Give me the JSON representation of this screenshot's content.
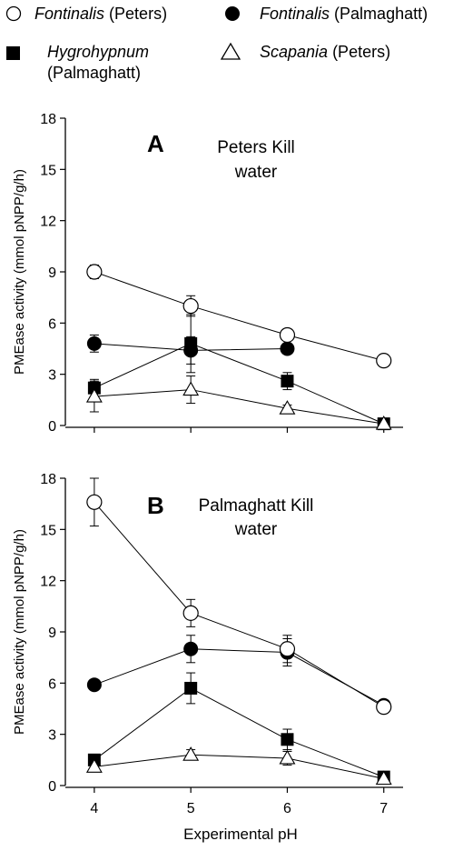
{
  "legend": [
    {
      "marker": "circle-open",
      "name_italic": "Fontinalis",
      "name_rest": " (Peters)"
    },
    {
      "marker": "circle-filled",
      "name_italic": "Fontinalis",
      "name_rest": " (Palmaghatt)"
    },
    {
      "marker": "square-filled",
      "name_italic": "Hygrohypnum",
      "name_rest": "(Palmaghatt)"
    },
    {
      "marker": "triangle-open",
      "name_italic": "Scapania",
      "name_rest": " (Peters)"
    }
  ],
  "xlabel": "Experimental pH",
  "chart_data": [
    {
      "type": "line",
      "panel_letter": "A",
      "title_lines": [
        "Peters Kill",
        "water"
      ],
      "ylabel": "PMEase activity (mmol pNPP/g/h)",
      "x": [
        4,
        5,
        6,
        7
      ],
      "xlim": [
        3.7,
        7.2
      ],
      "ylim": [
        0,
        18
      ],
      "yticks": [
        0,
        3,
        6,
        9,
        12,
        15,
        18
      ],
      "xticks": [
        4,
        5,
        6,
        7
      ],
      "series": [
        {
          "key": "fontinalis_peters",
          "marker": "circle-open",
          "values": [
            9.0,
            7.0,
            5.3,
            3.8
          ],
          "err": [
            0.4,
            0.6,
            0.2,
            0.1
          ]
        },
        {
          "key": "fontinalis_palmaghatt",
          "marker": "circle-filled",
          "values": [
            4.8,
            4.4,
            4.5,
            null
          ],
          "err": [
            0.5,
            0.8,
            0.2,
            null
          ]
        },
        {
          "key": "hygrohypnum_palmaghatt",
          "marker": "square-filled",
          "values": [
            2.2,
            4.8,
            2.6,
            0.1
          ],
          "err": [
            0.5,
            1.7,
            0.5,
            0.1
          ]
        },
        {
          "key": "scapania_peters",
          "marker": "triangle-open",
          "values": [
            1.7,
            2.1,
            1.0,
            0.1
          ],
          "err": [
            0.9,
            0.8,
            0.2,
            0.1
          ]
        }
      ]
    },
    {
      "type": "line",
      "panel_letter": "B",
      "title_lines": [
        "Palmaghatt Kill",
        "water"
      ],
      "ylabel": "PMEase activity (mmol pNPP/g/h)",
      "x": [
        4,
        5,
        6,
        7
      ],
      "xlim": [
        3.7,
        7.2
      ],
      "ylim": [
        0,
        18
      ],
      "yticks": [
        0,
        3,
        6,
        9,
        12,
        15,
        18
      ],
      "xticks": [
        4,
        5,
        6,
        7
      ],
      "series": [
        {
          "key": "fontinalis_peters",
          "marker": "circle-open",
          "values": [
            16.6,
            10.1,
            8.0,
            4.6
          ],
          "err": [
            1.4,
            0.8,
            0.8,
            0.1
          ]
        },
        {
          "key": "fontinalis_palmaghatt",
          "marker": "circle-filled",
          "values": [
            5.9,
            8.0,
            7.8,
            4.7
          ],
          "err": [
            0.1,
            0.8,
            0.8,
            0.1
          ]
        },
        {
          "key": "hygrohypnum_palmaghatt",
          "marker": "square-filled",
          "values": [
            1.5,
            5.7,
            2.7,
            0.5
          ],
          "err": [
            0.3,
            0.9,
            0.6,
            0.1
          ]
        },
        {
          "key": "scapania_peters",
          "marker": "triangle-open",
          "values": [
            1.1,
            1.8,
            1.6,
            0.4
          ],
          "err": [
            0.2,
            0.3,
            0.4,
            0.1
          ]
        }
      ]
    }
  ]
}
